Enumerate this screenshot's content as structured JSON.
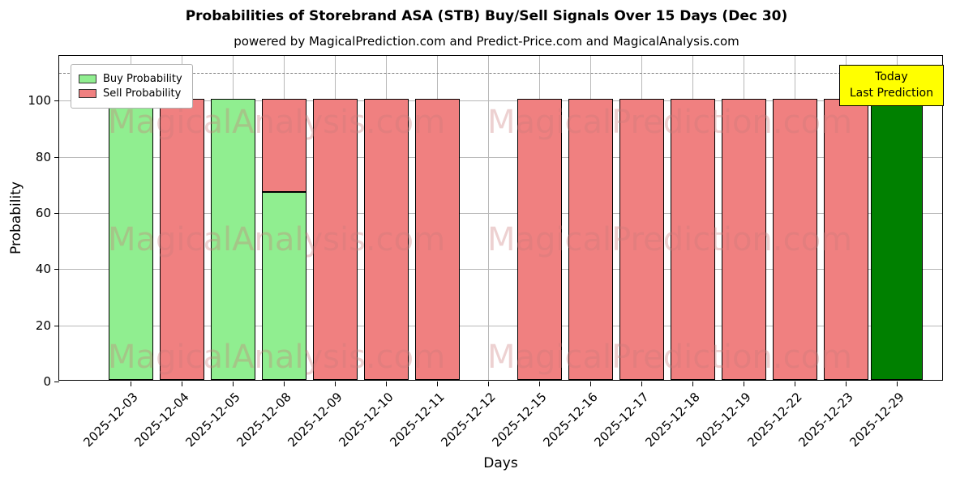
{
  "title": "Probabilities of Storebrand ASA (STB) Buy/Sell Signals Over 15 Days (Dec 30)",
  "subtitle": "powered by MagicalPrediction.com and Predict-Price.com and MagicalAnalysis.com",
  "legend": {
    "items": [
      {
        "label": "Buy Probability",
        "color": "#90EE90"
      },
      {
        "label": "Sell Probability",
        "color": "#F08080"
      }
    ]
  },
  "annotation": {
    "line1": "Today",
    "line2": "Last Prediction",
    "bg": "#FFFF00"
  },
  "watermarks": {
    "left": "MagicalAnalysis.com",
    "right": "MagicalPrediction.com"
  },
  "chart_data": {
    "type": "bar",
    "title": "Probabilities of Storebrand ASA (STB) Buy/Sell Signals Over 15 Days (Dec 30)",
    "xlabel": "Days",
    "ylabel": "Probability",
    "ylim": [
      0,
      116
    ],
    "yticks": [
      0,
      20,
      40,
      60,
      80,
      100
    ],
    "dashed_line_y": 110,
    "grid": true,
    "legend_position": "upper left",
    "categories": [
      "2025-12-03",
      "2025-12-04",
      "2025-12-05",
      "2025-12-08",
      "2025-12-09",
      "2025-12-10",
      "2025-12-11",
      "2025-12-12",
      "2025-12-15",
      "2025-12-16",
      "2025-12-17",
      "2025-12-18",
      "2025-12-19",
      "2025-12-22",
      "2025-12-23",
      "2025-12-29"
    ],
    "series": [
      {
        "name": "Buy Probability",
        "color": "#90EE90",
        "values": [
          100,
          0,
          100,
          67,
          0,
          0,
          0,
          0,
          0,
          0,
          0,
          0,
          0,
          0,
          0,
          0
        ]
      },
      {
        "name": "Sell Probability",
        "color": "#F08080",
        "values": [
          0,
          100,
          0,
          33,
          100,
          100,
          100,
          0,
          100,
          100,
          100,
          100,
          100,
          100,
          100,
          0
        ]
      },
      {
        "name": "Today Prediction",
        "color": "#008000",
        "values": [
          0,
          0,
          0,
          0,
          0,
          0,
          0,
          0,
          0,
          0,
          0,
          0,
          0,
          0,
          0,
          100
        ]
      }
    ]
  }
}
